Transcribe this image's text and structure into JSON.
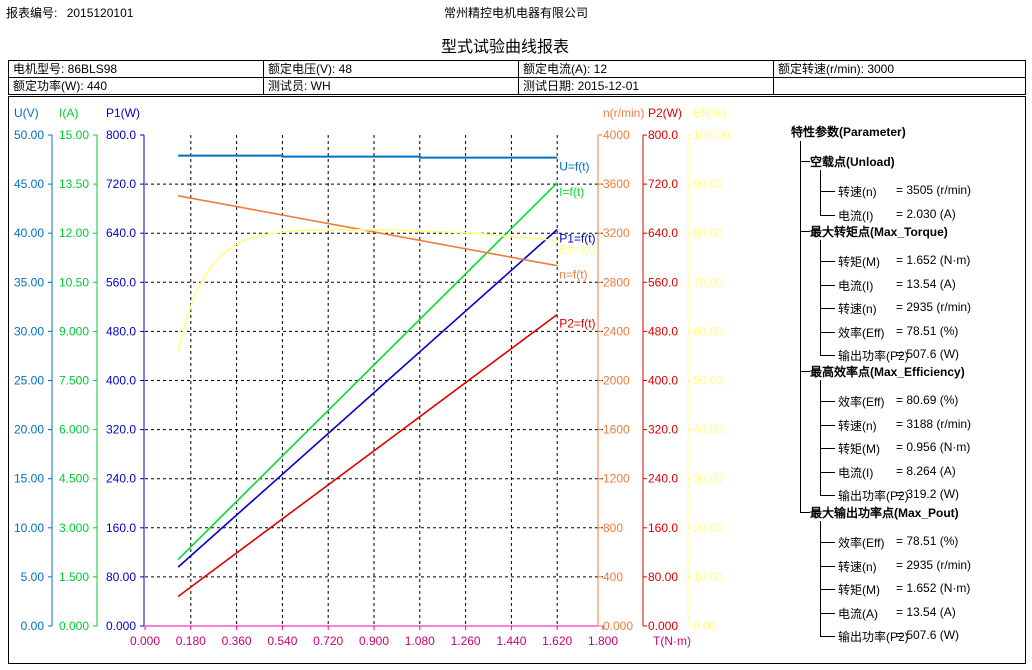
{
  "header": {
    "report_no_label": "报表编号:",
    "report_no": "2015120101",
    "company": "常州精控电机电器有限公司",
    "title": "型式试验曲线报表"
  },
  "info": {
    "motor_model": "电机型号: 86BLS98",
    "rated_voltage": "额定电压(V): 48",
    "rated_current": "额定电流(A): 12",
    "rated_speed": "额定转速(r/min): 3000",
    "rated_power": "额定功率(W): 440",
    "tester": "测试员: WH",
    "test_date": "测试日期: 2015-12-01"
  },
  "chart_data": {
    "type": "line",
    "xlabel": "T(N·m)",
    "xlim": [
      0,
      1.8
    ],
    "x_ticks": [
      "0.000",
      "0.180",
      "0.360",
      "0.540",
      "0.720",
      "0.900",
      "1.080",
      "1.260",
      "1.440",
      "1.620",
      "1.800"
    ],
    "axes": [
      {
        "id": "U",
        "label": "U(V)",
        "color": "#0070c0",
        "min": 0,
        "max": 50,
        "ticks": [
          "0.00",
          "5.00",
          "10.00",
          "15.00",
          "20.00",
          "25.00",
          "30.00",
          "35.00",
          "40.00",
          "45.00",
          "50.00"
        ]
      },
      {
        "id": "I",
        "label": "I(A)",
        "color": "#00cc33",
        "min": 0,
        "max": 15,
        "ticks": [
          "0.000",
          "1.500",
          "3.000",
          "4.500",
          "6.000",
          "7.500",
          "9.000",
          "10.50",
          "12.00",
          "13.50",
          "15.00"
        ]
      },
      {
        "id": "P1",
        "label": "P1(W)",
        "color": "#0000cc",
        "min": 0,
        "max": 800,
        "ticks": [
          "0.000",
          "80.00",
          "160.0",
          "240.0",
          "320.0",
          "400.0",
          "480.0",
          "560.0",
          "640.0",
          "720.0",
          "800.0"
        ]
      },
      {
        "id": "n",
        "label": "n(r/min)",
        "color": "#f07c3c",
        "min": 0,
        "max": 4000,
        "ticks": [
          "0.000",
          "400",
          "800",
          "1200",
          "1600",
          "2000",
          "2400",
          "2800",
          "3200",
          "3600",
          "4000"
        ]
      },
      {
        "id": "P2",
        "label": "P2(W)",
        "color": "#dd0000",
        "min": 0,
        "max": 800,
        "ticks": [
          "0.000",
          "80.00",
          "160.0",
          "240.0",
          "320.0",
          "400.0",
          "480.0",
          "560.0",
          "640.0",
          "720.0",
          "800.0"
        ]
      },
      {
        "id": "Eff",
        "label": "Eff(%)",
        "color": "#ffff80",
        "min": 0,
        "max": 100,
        "ticks": [
          "0.00",
          "10.00",
          "20.00",
          "30.00",
          "40.00",
          "50.00",
          "60.00",
          "70.00",
          "80.00",
          "90.00",
          "100.00"
        ]
      }
    ],
    "series": [
      {
        "name": "U=f(t)",
        "axis": "U",
        "color": "#0070c0",
        "x": [
          0.13,
          0.54,
          0.54,
          1.08,
          1.08,
          1.62
        ],
        "y": [
          47.9,
          47.9,
          47.8,
          47.8,
          47.7,
          47.7
        ]
      },
      {
        "name": "I=f(t)",
        "axis": "I",
        "color": "#00dd33",
        "x": [
          0.13,
          1.62
        ],
        "y": [
          2.03,
          13.54
        ]
      },
      {
        "name": "P1=f(t)",
        "axis": "P1",
        "color": "#0000cc",
        "x": [
          0.13,
          1.62
        ],
        "y": [
          96,
          646
        ]
      },
      {
        "name": "n=f(t)",
        "axis": "n",
        "color": "#f07c3c",
        "x": [
          0.13,
          1.62
        ],
        "y": [
          3505,
          2935
        ]
      },
      {
        "name": "P2=f(t)",
        "axis": "P2",
        "color": "#dd0000",
        "x": [
          0.13,
          1.62
        ],
        "y": [
          48,
          507.6
        ]
      },
      {
        "name": "Eff=f(t)",
        "axis": "Eff",
        "color": "#ffff80",
        "x": [
          0.13,
          0.16,
          0.2,
          0.25,
          0.3,
          0.35,
          0.4,
          0.5,
          0.6,
          0.7,
          0.8,
          0.956,
          1.1,
          1.3,
          1.5,
          1.62
        ],
        "y": [
          56,
          62,
          68,
          72.5,
          75.5,
          77.5,
          78.8,
          80,
          80.5,
          80.7,
          80.69,
          80.69,
          80.4,
          80,
          79,
          78.51
        ]
      }
    ],
    "grid": true
  },
  "params": {
    "title": "特性参数(Parameter)",
    "groups": [
      {
        "name": "空载点(Unload)",
        "items": [
          {
            "label": "转速(n)",
            "value": "= 3505  (r/min)"
          },
          {
            "label": "电流(I)",
            "value": "= 2.030  (A)"
          }
        ]
      },
      {
        "name": "最大转矩点(Max_Torque)",
        "items": [
          {
            "label": "转矩(M)",
            "value": "= 1.652  (N·m)"
          },
          {
            "label": "电流(I)",
            "value": "= 13.54  (A)"
          },
          {
            "label": "转速(n)",
            "value": "= 2935  (r/min)"
          },
          {
            "label": "效率(Eff)",
            "value": "= 78.51  (%)"
          },
          {
            "label": "输出功率(P2)",
            "value": "= 507.6  (W)"
          }
        ]
      },
      {
        "name": "最高效率点(Max_Efficiency)",
        "items": [
          {
            "label": "效率(Eff)",
            "value": "= 80.69  (%)"
          },
          {
            "label": "转速(n)",
            "value": "= 3188  (r/min)"
          },
          {
            "label": "转矩(M)",
            "value": "= 0.956  (N·m)"
          },
          {
            "label": "电流(I)",
            "value": "= 8.264  (A)"
          },
          {
            "label": "输出功率(P2)",
            "value": "= 319.2  (W)"
          }
        ]
      },
      {
        "name": "最大输出功率点(Max_Pout)",
        "items": [
          {
            "label": "效率(Eff)",
            "value": "= 78.51  (%)"
          },
          {
            "label": "转速(n)",
            "value": "= 2935  (r/min)"
          },
          {
            "label": "转矩(M)",
            "value": "= 1.652  (N·m)"
          },
          {
            "label": "电流(A)",
            "value": "= 13.54  (A)"
          },
          {
            "label": "输出功率(P2)",
            "value": "= 507.6  (W)"
          }
        ]
      }
    ]
  }
}
